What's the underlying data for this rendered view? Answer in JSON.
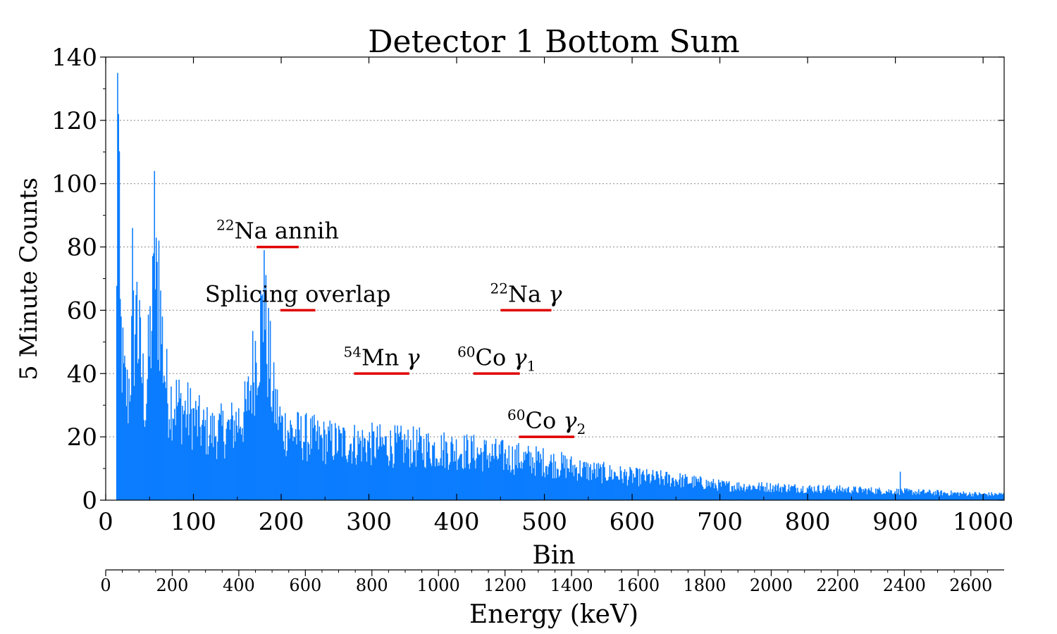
{
  "chart_data": {
    "type": "bar",
    "title": "Detector 1 Bottom Sum",
    "xlabel": "Bin",
    "ylabel": "5 Minute Counts",
    "secondary_xlabel": "Energy (keV)",
    "xlim": [
      0,
      1024
    ],
    "ylim": [
      0,
      140
    ],
    "secondary_xlim": [
      0,
      2700
    ],
    "grid": "horizontal dotted",
    "bar_color": "#0a7cff",
    "annotation_color": "#e00000",
    "x_ticks": [
      "0",
      "100",
      "200",
      "300",
      "400",
      "500",
      "600",
      "700",
      "800",
      "900",
      "1000"
    ],
    "y_ticks": [
      "0",
      "20",
      "40",
      "60",
      "80",
      "100",
      "120",
      "140"
    ],
    "secondary_x_ticks": [
      "0",
      "200",
      "400",
      "600",
      "800",
      "1000",
      "1200",
      "1400",
      "1600",
      "1800",
      "2000",
      "2200",
      "2400",
      "2600"
    ],
    "envelope": {
      "x": [
        12,
        14,
        16,
        20,
        25,
        30,
        35,
        40,
        45,
        50,
        55,
        60,
        65,
        70,
        80,
        90,
        100,
        110,
        120,
        140,
        160,
        170,
        175,
        180,
        185,
        190,
        200,
        220,
        250,
        300,
        350,
        400,
        450,
        500,
        550,
        600,
        650,
        700,
        800,
        900,
        1000,
        1024
      ],
      "y": [
        65,
        110,
        60,
        40,
        35,
        55,
        60,
        45,
        32,
        55,
        70,
        70,
        50,
        35,
        33,
        30,
        28,
        24,
        23,
        24,
        30,
        50,
        58,
        62,
        50,
        35,
        25,
        22,
        20,
        19,
        18,
        17,
        15,
        13,
        10,
        8,
        7,
        5,
        4,
        3,
        2,
        2
      ]
    },
    "peaks": [
      {
        "x": 13,
        "y": 135
      },
      {
        "x": 14,
        "y": 122
      },
      {
        "x": 30,
        "y": 86
      },
      {
        "x": 35,
        "y": 69
      },
      {
        "x": 55,
        "y": 104
      },
      {
        "x": 60,
        "y": 82
      },
      {
        "x": 180,
        "y": 79
      },
      {
        "x": 905,
        "y": 9
      }
    ],
    "annotations": [
      {
        "mass": "22",
        "text": "Na annih",
        "greek": "",
        "sub": "",
        "y": 80,
        "x0": 172,
        "x1": 220
      },
      {
        "mass": "",
        "text": "Splicing overlap",
        "greek": "",
        "sub": "",
        "y": 60,
        "x0": 199,
        "x1": 239
      },
      {
        "mass": "22",
        "text": "Na ",
        "greek": "γ",
        "sub": "",
        "y": 60,
        "x0": 450,
        "x1": 508
      },
      {
        "mass": "54",
        "text": "Mn ",
        "greek": "γ",
        "sub": "",
        "y": 40,
        "x0": 283,
        "x1": 346
      },
      {
        "mass": "60",
        "text": "Co ",
        "greek": "γ",
        "sub": "1",
        "y": 40,
        "x0": 419,
        "x1": 472
      },
      {
        "mass": "60",
        "text": "Co ",
        "greek": "γ",
        "sub": "2",
        "y": 20,
        "x0": 471,
        "x1": 534
      }
    ]
  }
}
